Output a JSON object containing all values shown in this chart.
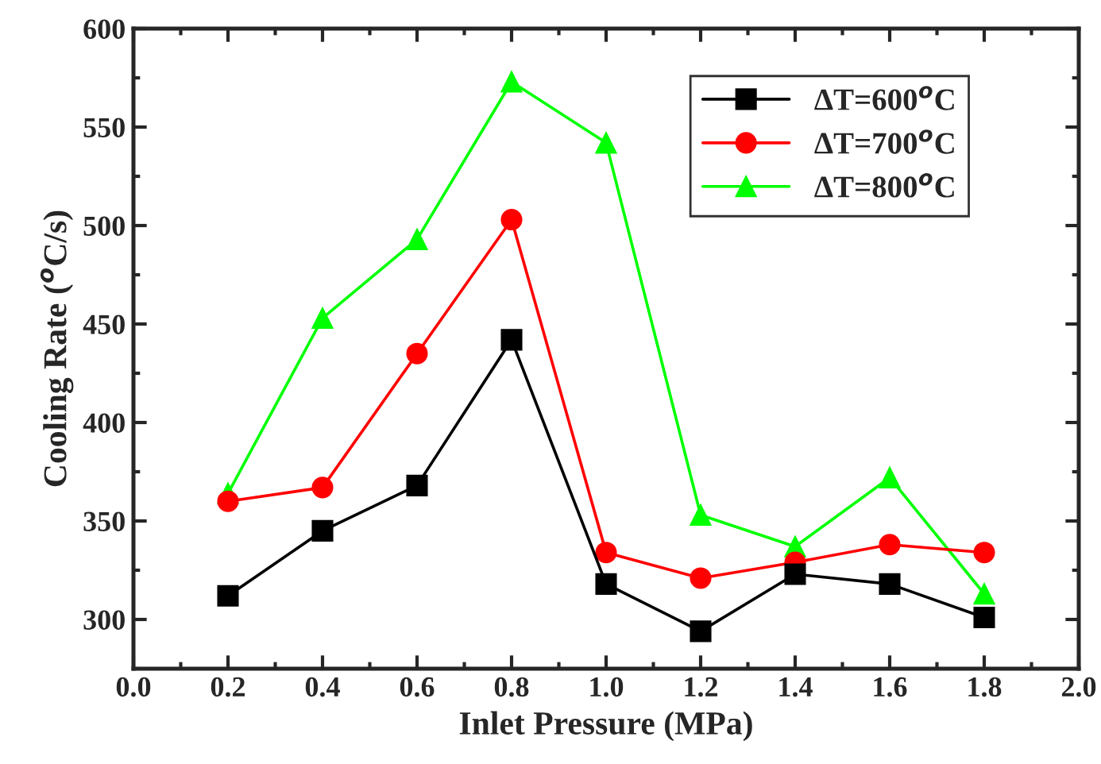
{
  "chart_data": {
    "type": "line",
    "xlabel": "Inlet Pressure (MPa)",
    "ylabel": "Cooling Rate ($^{o}$C/s)",
    "x": [
      0.2,
      0.4,
      0.6,
      0.8,
      1.0,
      1.2,
      1.4,
      1.6,
      1.8
    ],
    "series": [
      {
        "name": "ΔT=600$^{o}$C",
        "color": "#000000",
        "marker": "square",
        "values": [
          312,
          345,
          368,
          442,
          318,
          294,
          323,
          318,
          301
        ]
      },
      {
        "name": "ΔT=700$^{o}$C",
        "color": "#ff0000",
        "marker": "circle",
        "values": [
          360,
          367,
          435,
          503,
          334,
          321,
          329,
          338,
          334
        ]
      },
      {
        "name": "ΔT=800$^{o}$C",
        "color": "#00ff00",
        "marker": "triangle",
        "values": [
          364,
          453,
          493,
          573,
          542,
          353,
          337,
          372,
          313
        ]
      }
    ],
    "xlim": [
      0.0,
      2.0
    ],
    "xticks": [
      {
        "value": 0.0,
        "label": "0.0"
      },
      {
        "value": 0.2,
        "label": "0.2"
      },
      {
        "value": 0.4,
        "label": "0.4"
      },
      {
        "value": 0.6,
        "label": "0.6"
      },
      {
        "value": 0.8,
        "label": "0.8"
      },
      {
        "value": 1.0,
        "label": "1.0"
      },
      {
        "value": 1.2,
        "label": "1.2"
      },
      {
        "value": 1.4,
        "label": "1.4"
      },
      {
        "value": 1.6,
        "label": "1.6"
      },
      {
        "value": 1.8,
        "label": "1.8"
      },
      {
        "value": 2.0,
        "label": "2.0"
      }
    ],
    "ylim": [
      275,
      600
    ],
    "yticks": [
      300,
      350,
      400,
      450,
      500,
      550,
      600
    ],
    "grid": false,
    "legend": "top right",
    "line_style": "solid"
  }
}
